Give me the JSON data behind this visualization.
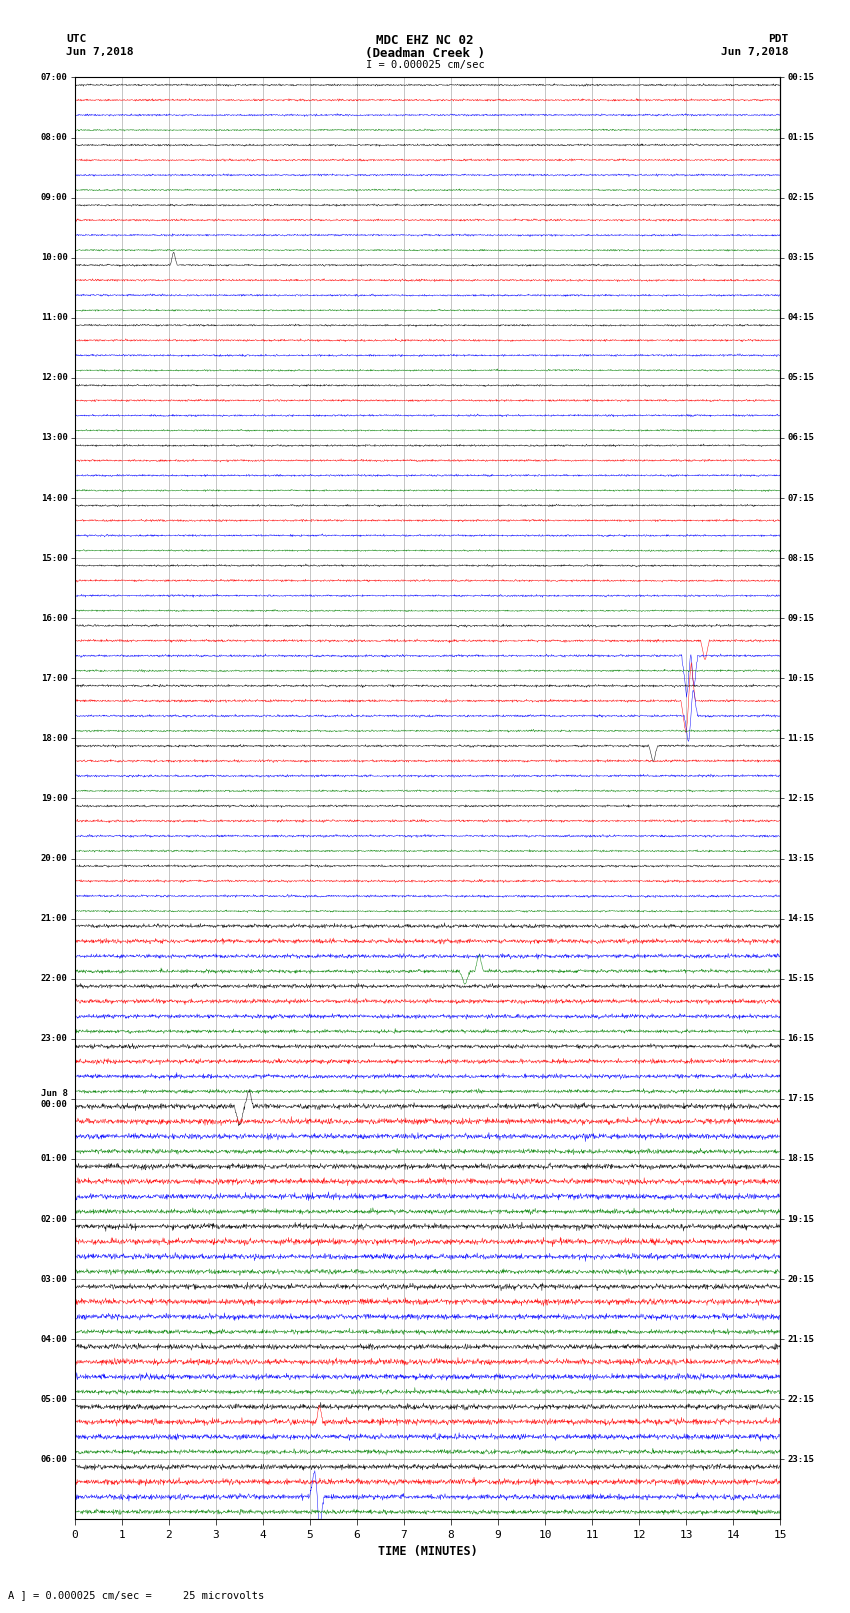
{
  "title_line1": "MDC EHZ NC 02",
  "title_line2": "(Deadman Creek )",
  "title_line3": "I = 0.000025 cm/sec",
  "utc_label": "UTC",
  "utc_date": "Jun 7,2018",
  "pdt_label": "PDT",
  "pdt_date": "Jun 7,2018",
  "xlabel": "TIME (MINUTES)",
  "footer": "A ] = 0.000025 cm/sec =     25 microvolts",
  "left_times": [
    "07:00",
    "08:00",
    "09:00",
    "10:00",
    "11:00",
    "12:00",
    "13:00",
    "14:00",
    "15:00",
    "16:00",
    "17:00",
    "18:00",
    "19:00",
    "20:00",
    "21:00",
    "22:00",
    "23:00",
    "Jun 8\n00:00",
    "01:00",
    "02:00",
    "03:00",
    "04:00",
    "05:00",
    "06:00"
  ],
  "right_times": [
    "00:15",
    "01:15",
    "02:15",
    "03:15",
    "04:15",
    "05:15",
    "06:15",
    "07:15",
    "08:15",
    "09:15",
    "10:15",
    "11:15",
    "12:15",
    "13:15",
    "14:15",
    "15:15",
    "16:15",
    "17:15",
    "18:15",
    "19:15",
    "20:15",
    "21:15",
    "22:15",
    "23:15"
  ],
  "n_rows": 24,
  "n_traces_per_row": 4,
  "trace_colors": [
    "black",
    "red",
    "blue",
    "green"
  ],
  "x_min": 0,
  "x_max": 15,
  "x_ticks": [
    0,
    1,
    2,
    3,
    4,
    5,
    6,
    7,
    8,
    9,
    10,
    11,
    12,
    13,
    14,
    15
  ],
  "bg_color": "white",
  "noise_scale": 0.12
}
